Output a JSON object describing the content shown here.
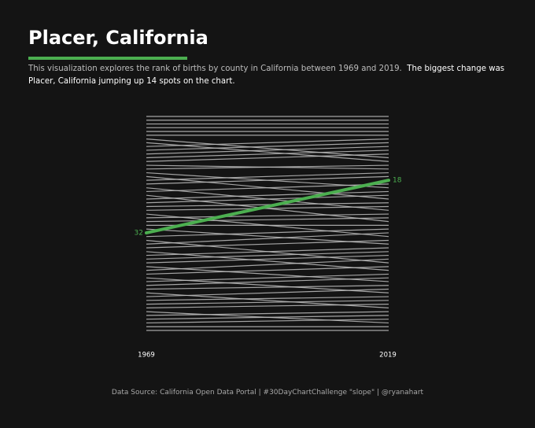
{
  "header": {
    "title": "Placer, California",
    "subtitle_main": "This visualization explores the rank of births by county in California between 1969 and 2019.",
    "subtitle_emphasis": "The biggest change was Placer, California jumping up 14 spots on the chart."
  },
  "footer": {
    "source": "Data Source: California Open Data Portal | #30DayChartChallenge \"slope\" | @ryanahart"
  },
  "colors": {
    "background": "#141414",
    "highlight": "#4caf50",
    "lines": "#bdbdbd"
  },
  "chart_data": {
    "type": "line",
    "title": "",
    "x": [
      "1969",
      "2019"
    ],
    "xlabel": "",
    "ylabel": "",
    "ylim": [
      1,
      58
    ],
    "y_reversed": true,
    "grid": false,
    "highlight": {
      "name": "Placer",
      "values": [
        32,
        18
      ],
      "start_label": "32",
      "end_label": "18"
    },
    "background_series": [
      [
        1,
        1
      ],
      [
        2,
        2
      ],
      [
        3,
        3
      ],
      [
        4,
        4
      ],
      [
        5,
        5
      ],
      [
        6,
        6
      ],
      [
        7,
        12
      ],
      [
        8,
        13
      ],
      [
        9,
        7
      ],
      [
        10,
        8
      ],
      [
        11,
        9
      ],
      [
        12,
        10
      ],
      [
        13,
        11
      ],
      [
        14,
        15
      ],
      [
        15,
        14
      ],
      [
        16,
        20
      ],
      [
        17,
        23
      ],
      [
        18,
        16
      ],
      [
        19,
        17
      ],
      [
        20,
        26
      ],
      [
        21,
        19
      ],
      [
        22,
        29
      ],
      [
        23,
        21
      ],
      [
        24,
        22
      ],
      [
        25,
        24
      ],
      [
        26,
        25
      ],
      [
        27,
        33
      ],
      [
        28,
        27
      ],
      [
        29,
        28
      ],
      [
        30,
        30
      ],
      [
        31,
        35
      ],
      [
        33,
        31
      ],
      [
        34,
        40
      ],
      [
        35,
        32
      ],
      [
        36,
        34
      ],
      [
        37,
        42
      ],
      [
        38,
        36
      ],
      [
        39,
        37
      ],
      [
        40,
        38
      ],
      [
        41,
        45
      ],
      [
        42,
        39
      ],
      [
        43,
        41
      ],
      [
        44,
        48
      ],
      [
        45,
        43
      ],
      [
        46,
        44
      ],
      [
        47,
        46
      ],
      [
        48,
        52
      ],
      [
        49,
        47
      ],
      [
        50,
        49
      ],
      [
        51,
        50
      ],
      [
        52,
        51
      ],
      [
        53,
        56
      ],
      [
        54,
        53
      ],
      [
        55,
        54
      ],
      [
        56,
        55
      ],
      [
        57,
        57
      ],
      [
        58,
        58
      ]
    ]
  }
}
